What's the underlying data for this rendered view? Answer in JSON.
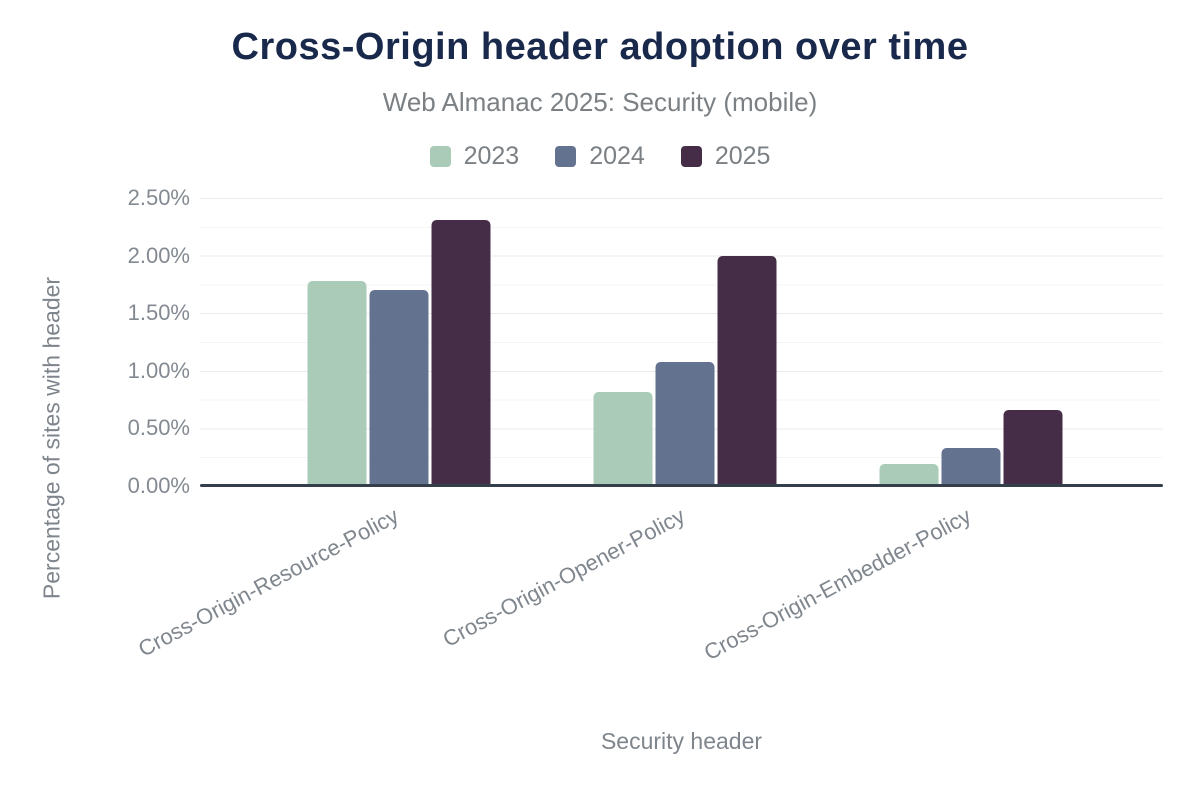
{
  "header": {
    "title": "Cross-Origin header adoption over time",
    "subtitle": "Web Almanac 2025: Security (mobile)"
  },
  "chart_data": {
    "type": "bar",
    "title": "Cross-Origin header adoption over time",
    "subtitle": "Web Almanac 2025: Security (mobile)",
    "categories": [
      "Cross-Origin-Resource-Policy",
      "Cross-Origin-Opener-Policy",
      "Cross-Origin-Embedder-Policy"
    ],
    "series": [
      {
        "name": "2023",
        "color": "#a9cbb7",
        "values": [
          1.78,
          0.82,
          0.19
        ]
      },
      {
        "name": "2024",
        "color": "#63728e",
        "values": [
          1.7,
          1.08,
          0.33
        ]
      },
      {
        "name": "2025",
        "color": "#462d47",
        "values": [
          2.31,
          2.0,
          0.66
        ]
      }
    ],
    "xlabel": "Security header",
    "ylabel": "Percentage of sites with header",
    "ylim": [
      0,
      2.5
    ],
    "ytick_labels": [
      "0.00%",
      "0.50%",
      "1.00%",
      "1.50%",
      "2.00%",
      "2.50%"
    ],
    "grid": "horizontal, major every 0.5%, minor every 0.1%",
    "legend_position": "top"
  },
  "colors": {
    "title_text": "#19294b",
    "muted_text": "#7e858c",
    "axis_line": "#353f49",
    "grid_major": "#ebebeb",
    "grid_minor": "#f5f5f5",
    "background": "#ffffff"
  }
}
